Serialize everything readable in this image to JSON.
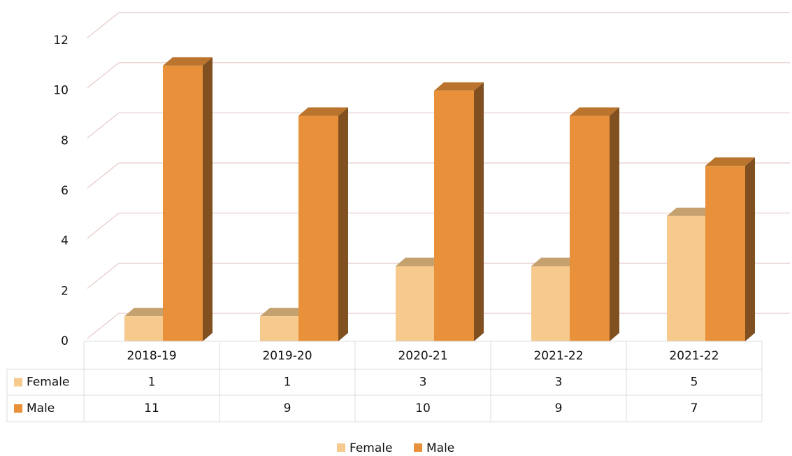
{
  "chart_data": {
    "type": "bar3d",
    "categories": [
      "2018-19",
      "2019-20",
      "2020-21",
      "2021-22",
      "2021-22"
    ],
    "series": [
      {
        "name": "Female",
        "color": "#f6c98c",
        "values": [
          1,
          1,
          3,
          3,
          5
        ]
      },
      {
        "name": "Male",
        "color": "#e8913a",
        "values": [
          11,
          9,
          10,
          9,
          7
        ]
      }
    ],
    "ylim": [
      0,
      12
    ],
    "yticks": [
      0,
      2,
      4,
      6,
      8,
      10,
      12
    ],
    "grid": true,
    "legend": "bottom",
    "data_table": true
  }
}
